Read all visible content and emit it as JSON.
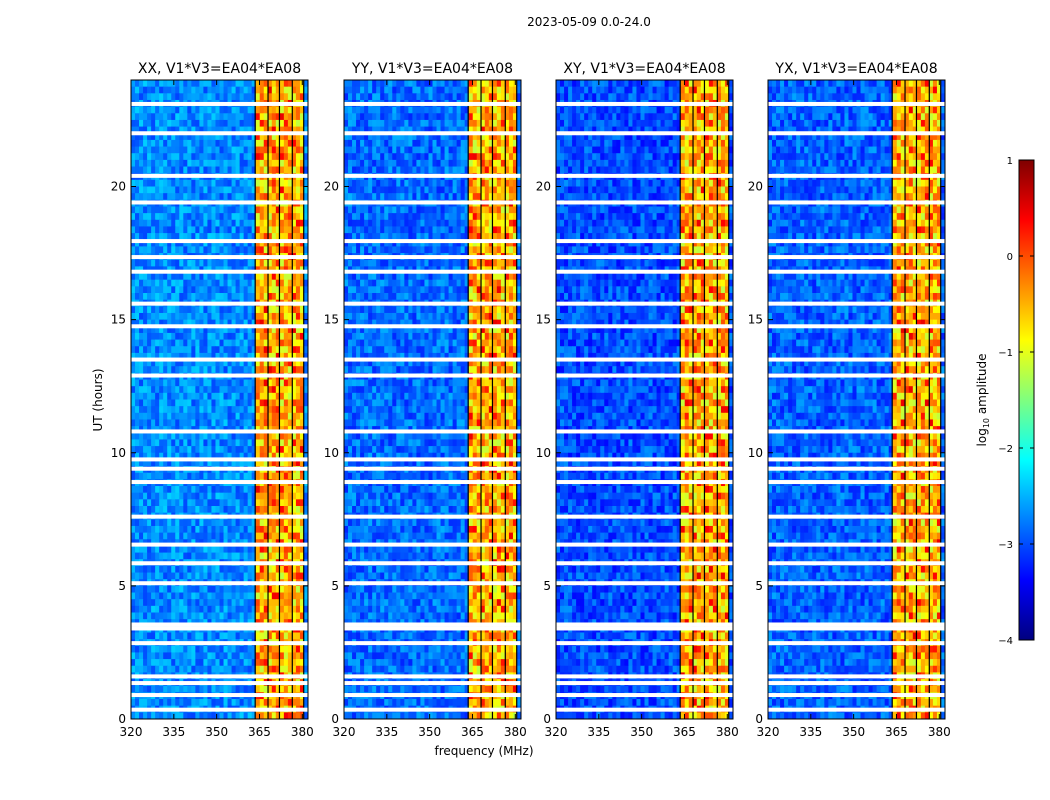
{
  "chart_data": {
    "type": "heatmap",
    "suptitle": "2023-05-09 0.0-24.0",
    "xlabel": "frequency (MHz)",
    "ylabel": "UT (hours)",
    "xlim": [
      320,
      382
    ],
    "ylim": [
      0,
      24
    ],
    "xticks": [
      320,
      335,
      350,
      365,
      380
    ],
    "yticks": [
      0,
      5,
      10,
      15,
      20
    ],
    "colorbar": {
      "label": "log10 amplitude",
      "label_main": "log",
      "label_sub": "10",
      "label_rest": " amplitude",
      "range": [
        -4,
        1
      ],
      "ticks": [
        -4,
        -3,
        -2,
        -1,
        0,
        1
      ],
      "tick_labels": [
        "−4",
        "−3",
        "−2",
        "−1",
        "0",
        "1"
      ],
      "colormap": "jet"
    },
    "panels": [
      {
        "title": "XX, V1*V3=EA04*EA08",
        "background_level": -2.7
      },
      {
        "title": "YY, V1*V3=EA04*EA08",
        "background_level": -2.85
      },
      {
        "title": "XY, V1*V3=EA04*EA08",
        "background_level": -3.0
      },
      {
        "title": "YX, V1*V3=EA04*EA08",
        "background_level": -2.9
      }
    ],
    "rfi_band_mhz": [
      363.5,
      380.5
    ],
    "rfi_band_level": -0.6,
    "rfi_subband_edges_mhz": [
      363.5,
      368.0,
      372.0,
      376.5,
      380.5
    ],
    "flagged_ut_hours": [
      0.35,
      0.9,
      1.35,
      1.6,
      2.85,
      3.4,
      3.55,
      5.1,
      5.85,
      6.55,
      7.6,
      8.9,
      9.4,
      9.75,
      10.8,
      12.9,
      13.5,
      14.75,
      15.6,
      16.8,
      17.35,
      17.95,
      19.4,
      20.4,
      22.0,
      23.1
    ]
  },
  "colors": {
    "jet_stops": [
      "#00007f",
      "#0000ff",
      "#007fff",
      "#00ffff",
      "#7fff7f",
      "#ffff00",
      "#ff7f00",
      "#ff0000",
      "#7f0000"
    ]
  }
}
